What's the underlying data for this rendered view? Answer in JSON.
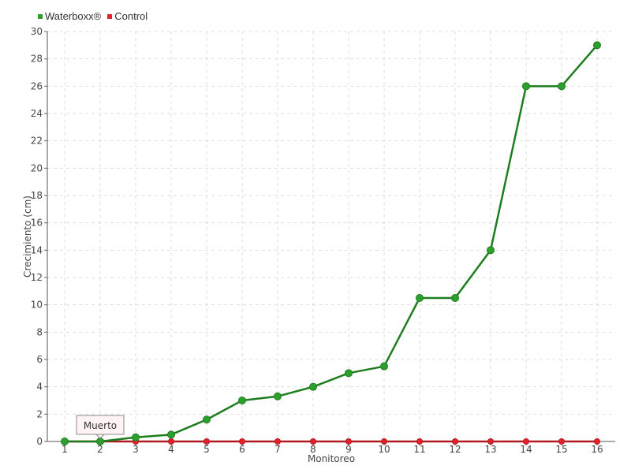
{
  "chart_data": {
    "type": "line",
    "xlabel": "Monitoreo",
    "ylabel": "Crecimiento (cm)",
    "xlim": [
      1,
      16
    ],
    "ylim": [
      0,
      30
    ],
    "yticks": [
      0,
      2,
      4,
      6,
      8,
      10,
      12,
      14,
      16,
      18,
      20,
      22,
      24,
      26,
      28,
      30
    ],
    "x": [
      1,
      2,
      3,
      4,
      5,
      6,
      7,
      8,
      9,
      10,
      11,
      12,
      13,
      14,
      15,
      16
    ],
    "series": [
      {
        "name": "Waterboxx®",
        "color": "#2ca02c",
        "values": [
          0,
          0,
          0.3,
          0.5,
          1.6,
          3,
          3.3,
          4,
          5,
          5.5,
          10.5,
          10.5,
          14,
          26,
          26,
          29
        ]
      },
      {
        "name": "Control",
        "color": "#d62728",
        "values": [
          0,
          0,
          0,
          0,
          0,
          0,
          0,
          0,
          0,
          0,
          0,
          0,
          0,
          0,
          0,
          0
        ]
      }
    ],
    "grid": true,
    "legend_position": "top-left",
    "annotation": {
      "text": "Muerto",
      "x": 2,
      "y": 0
    }
  }
}
